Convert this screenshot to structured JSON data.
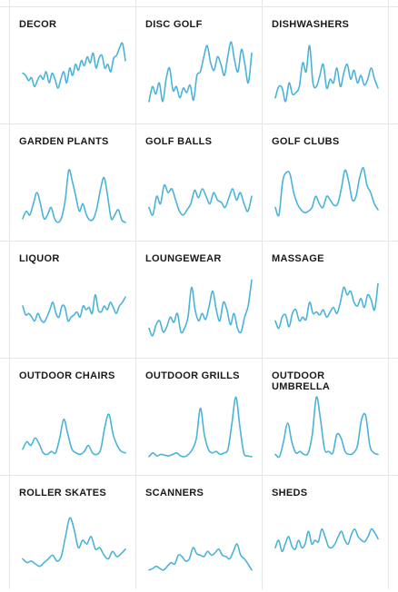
{
  "line_color": "#4ab3d8",
  "chart_data": [
    {
      "type": "line",
      "title": "DECOR",
      "values": [
        0.48,
        0.45,
        0.38,
        0.42,
        0.3,
        0.38,
        0.45,
        0.4,
        0.5,
        0.35,
        0.48,
        0.4,
        0.28,
        0.4,
        0.5,
        0.35,
        0.55,
        0.45,
        0.6,
        0.52,
        0.65,
        0.58,
        0.7,
        0.62,
        0.75,
        0.55,
        0.68,
        0.72,
        0.55,
        0.6,
        0.5,
        0.68,
        0.72,
        0.82,
        0.88,
        0.65
      ]
    },
    {
      "type": "line",
      "title": "DISC GOLF",
      "values": [
        0.1,
        0.3,
        0.2,
        0.35,
        0.1,
        0.4,
        0.55,
        0.25,
        0.3,
        0.15,
        0.28,
        0.22,
        0.32,
        0.12,
        0.45,
        0.5,
        0.7,
        0.85,
        0.62,
        0.52,
        0.7,
        0.6,
        0.45,
        0.7,
        0.9,
        0.65,
        0.5,
        0.8,
        0.6,
        0.35,
        0.75
      ]
    },
    {
      "type": "line",
      "title": "DISHWASHERS",
      "values": [
        0.15,
        0.3,
        0.28,
        0.1,
        0.35,
        0.2,
        0.22,
        0.3,
        0.62,
        0.5,
        0.85,
        0.35,
        0.3,
        0.45,
        0.6,
        0.28,
        0.4,
        0.35,
        0.55,
        0.3,
        0.48,
        0.6,
        0.4,
        0.52,
        0.35,
        0.45,
        0.32,
        0.4,
        0.55,
        0.4,
        0.28
      ]
    },
    {
      "type": "line",
      "title": "GARDEN PLANTS",
      "values": [
        0.1,
        0.2,
        0.15,
        0.3,
        0.45,
        0.3,
        0.1,
        0.15,
        0.25,
        0.1,
        0.05,
        0.12,
        0.35,
        0.75,
        0.6,
        0.4,
        0.2,
        0.3,
        0.15,
        0.08,
        0.1,
        0.25,
        0.5,
        0.65,
        0.4,
        0.1,
        0.15,
        0.22,
        0.08,
        0.05
      ]
    },
    {
      "type": "line",
      "title": "GOLF BALLS",
      "values": [
        0.25,
        0.15,
        0.4,
        0.3,
        0.55,
        0.45,
        0.5,
        0.35,
        0.2,
        0.15,
        0.22,
        0.3,
        0.48,
        0.38,
        0.5,
        0.4,
        0.3,
        0.45,
        0.35,
        0.32,
        0.25,
        0.38,
        0.5,
        0.35,
        0.45,
        0.3,
        0.2,
        0.4
      ]
    },
    {
      "type": "line",
      "title": "GOLF CLUBS",
      "values": [
        0.25,
        0.15,
        0.6,
        0.72,
        0.7,
        0.45,
        0.3,
        0.22,
        0.18,
        0.2,
        0.25,
        0.4,
        0.3,
        0.25,
        0.4,
        0.35,
        0.28,
        0.3,
        0.5,
        0.75,
        0.6,
        0.35,
        0.4,
        0.65,
        0.78,
        0.55,
        0.45,
        0.3,
        0.22
      ]
    },
    {
      "type": "line",
      "title": "LIQUOR",
      "values": [
        0.5,
        0.38,
        0.4,
        0.35,
        0.3,
        0.4,
        0.32,
        0.28,
        0.35,
        0.45,
        0.55,
        0.4,
        0.35,
        0.5,
        0.48,
        0.3,
        0.35,
        0.38,
        0.42,
        0.35,
        0.5,
        0.45,
        0.48,
        0.4,
        0.65,
        0.45,
        0.42,
        0.5,
        0.45,
        0.55,
        0.48,
        0.4,
        0.5,
        0.55,
        0.62
      ]
    },
    {
      "type": "line",
      "title": "LOUNGEWEAR",
      "values": [
        0.2,
        0.1,
        0.25,
        0.3,
        0.15,
        0.22,
        0.35,
        0.28,
        0.4,
        0.15,
        0.2,
        0.35,
        0.75,
        0.45,
        0.3,
        0.4,
        0.32,
        0.5,
        0.7,
        0.45,
        0.3,
        0.55,
        0.45,
        0.25,
        0.4,
        0.2,
        0.15,
        0.35,
        0.5,
        0.85
      ]
    },
    {
      "type": "line",
      "title": "MASSAGE",
      "values": [
        0.3,
        0.2,
        0.35,
        0.38,
        0.22,
        0.4,
        0.45,
        0.3,
        0.35,
        0.32,
        0.55,
        0.4,
        0.42,
        0.38,
        0.45,
        0.35,
        0.42,
        0.48,
        0.4,
        0.55,
        0.75,
        0.65,
        0.7,
        0.55,
        0.5,
        0.6,
        0.48,
        0.65,
        0.58,
        0.45,
        0.8
      ]
    },
    {
      "type": "line",
      "title": "OUTDOOR CHAIRS",
      "values": [
        0.15,
        0.25,
        0.2,
        0.3,
        0.22,
        0.1,
        0.08,
        0.12,
        0.1,
        0.3,
        0.55,
        0.35,
        0.15,
        0.1,
        0.08,
        0.12,
        0.2,
        0.1,
        0.08,
        0.15,
        0.45,
        0.62,
        0.35,
        0.2,
        0.12,
        0.1
      ]
    },
    {
      "type": "line",
      "title": "OUTDOOR GRILLS",
      "values": [
        0.05,
        0.1,
        0.06,
        0.08,
        0.07,
        0.06,
        0.08,
        0.1,
        0.06,
        0.05,
        0.08,
        0.15,
        0.3,
        0.7,
        0.35,
        0.15,
        0.1,
        0.12,
        0.08,
        0.1,
        0.15,
        0.5,
        0.85,
        0.45,
        0.1,
        0.06,
        0.05
      ]
    },
    {
      "type": "line",
      "title": "OUTDOOR UMBRELLA",
      "values": [
        0.08,
        0.05,
        0.25,
        0.5,
        0.25,
        0.1,
        0.12,
        0.08,
        0.1,
        0.35,
        0.85,
        0.55,
        0.15,
        0.12,
        0.1,
        0.35,
        0.3,
        0.12,
        0.08,
        0.1,
        0.2,
        0.55,
        0.6,
        0.2,
        0.1,
        0.08
      ]
    },
    {
      "type": "line",
      "title": "ROLLER SKATES",
      "values": [
        0.25,
        0.2,
        0.22,
        0.18,
        0.15,
        0.2,
        0.25,
        0.3,
        0.22,
        0.28,
        0.55,
        0.8,
        0.65,
        0.4,
        0.5,
        0.45,
        0.55,
        0.38,
        0.4,
        0.3,
        0.25,
        0.35,
        0.28,
        0.32,
        0.38
      ]
    },
    {
      "type": "line",
      "title": "SCANNERS",
      "values": [
        0.1,
        0.12,
        0.15,
        0.12,
        0.1,
        0.15,
        0.2,
        0.18,
        0.3,
        0.28,
        0.22,
        0.25,
        0.4,
        0.32,
        0.3,
        0.28,
        0.35,
        0.3,
        0.33,
        0.38,
        0.3,
        0.28,
        0.25,
        0.35,
        0.45,
        0.3,
        0.25,
        0.18,
        0.1
      ]
    },
    {
      "type": "line",
      "title": "SHEDS",
      "values": [
        0.4,
        0.5,
        0.35,
        0.45,
        0.55,
        0.42,
        0.38,
        0.5,
        0.4,
        0.45,
        0.62,
        0.45,
        0.5,
        0.48,
        0.65,
        0.55,
        0.42,
        0.4,
        0.45,
        0.55,
        0.62,
        0.5,
        0.45,
        0.58,
        0.65,
        0.55,
        0.5,
        0.48,
        0.55,
        0.65,
        0.6,
        0.52
      ]
    }
  ]
}
